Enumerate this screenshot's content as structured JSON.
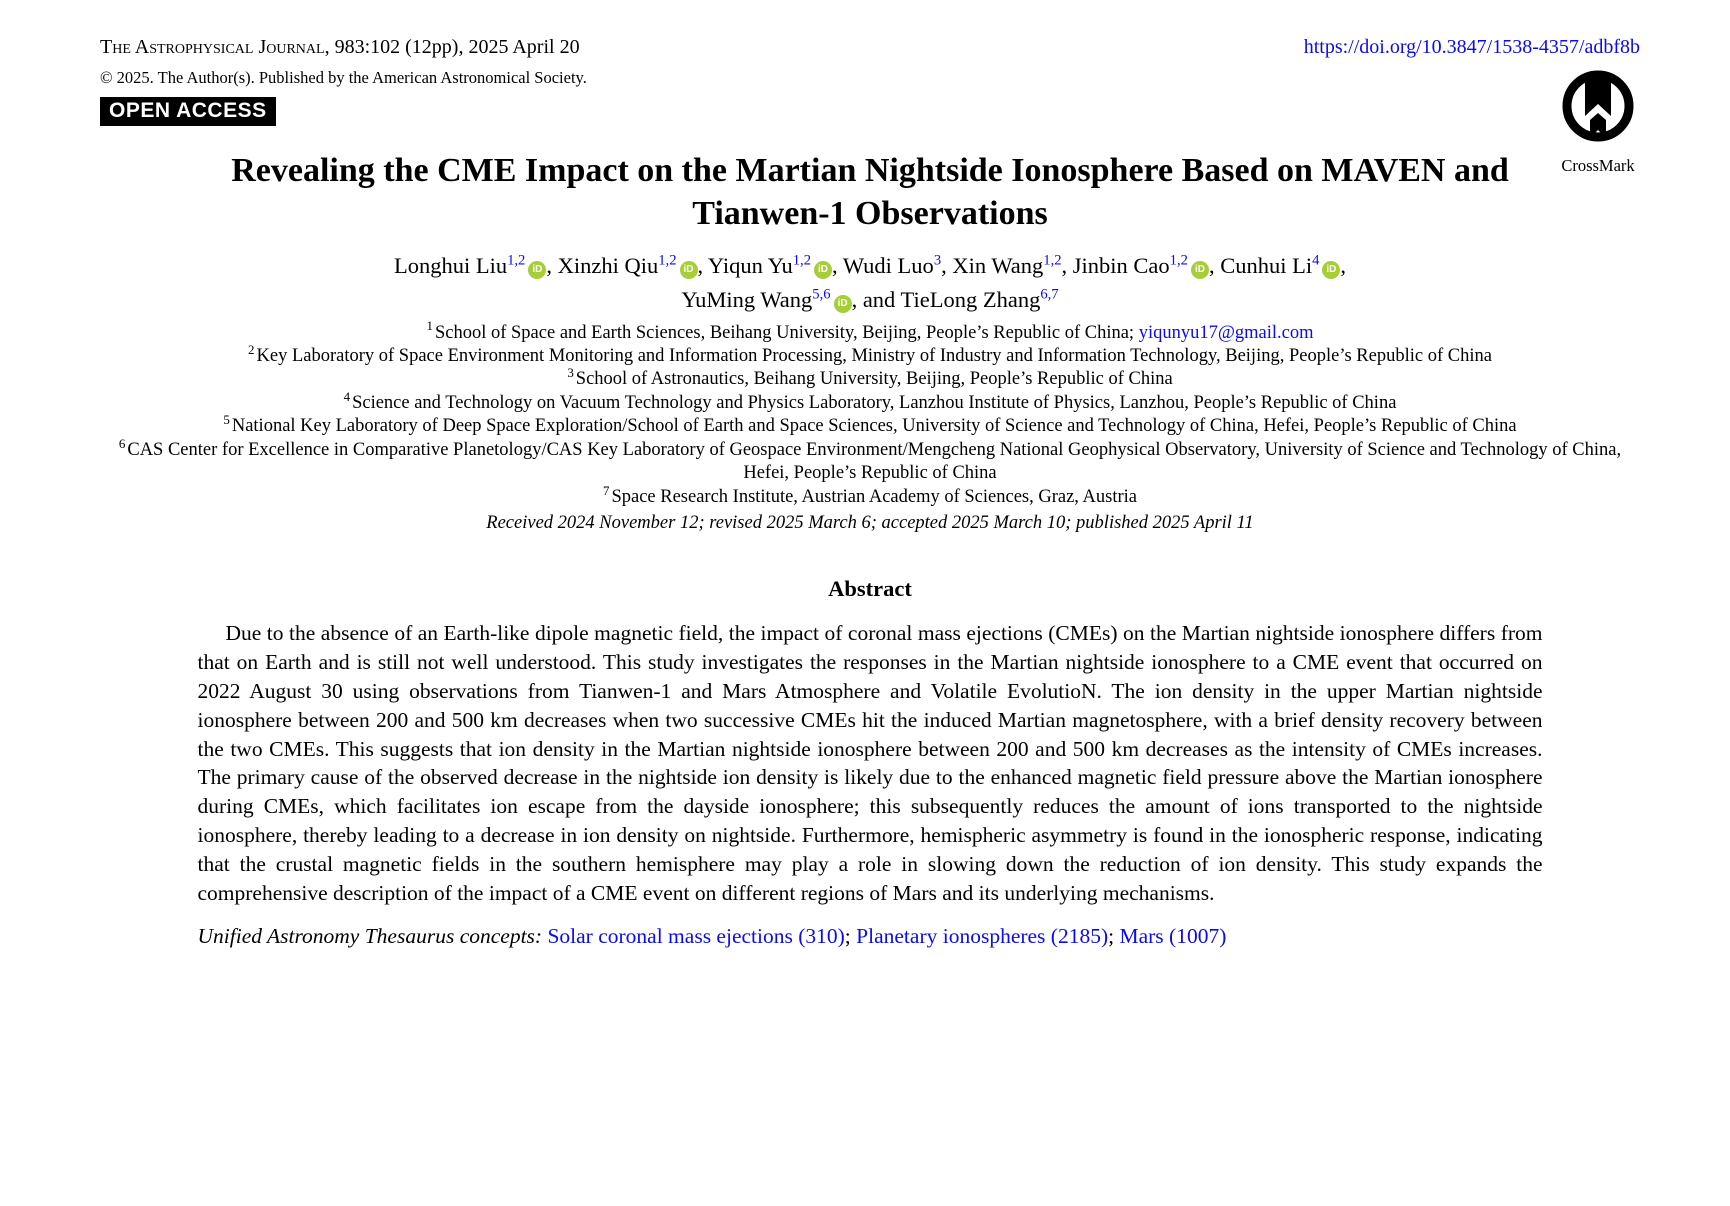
{
  "colors": {
    "link_blue": "#0b0bec",
    "orcid_green": "#A6CE39",
    "badge_bg": "#000000"
  },
  "header": {
    "journal_name": "The Astrophysical Journal",
    "journal_rest": ", 983:102 (12pp), 2025 April 20",
    "doi": "https://doi.org/10.3847/1538-4357/adbf8b",
    "copyright": "© 2025. The Author(s). Published by the American Astronomical Society.",
    "open_access_label": "OPEN ACCESS",
    "crossmark_label": "CrossMark"
  },
  "title": {
    "line1": "Revealing the CME Impact on the Martian Nightside Ionosphere Based on MAVEN and",
    "line2": "Tianwen-1 Observations"
  },
  "authors": [
    {
      "name": "Longhui Liu",
      "sup": "1,2",
      "orcid": true,
      "sep": ", ",
      "break_after": false
    },
    {
      "name": "Xinzhi Qiu",
      "sup": "1,2",
      "orcid": true,
      "sep": ", ",
      "break_after": false
    },
    {
      "name": "Yiqun Yu",
      "sup": "1,2",
      "orcid": true,
      "sep": ", ",
      "break_after": false
    },
    {
      "name": "Wudi Luo",
      "sup": "3",
      "orcid": false,
      "sep": ", ",
      "break_after": false
    },
    {
      "name": "Xin Wang",
      "sup": "1,2",
      "orcid": false,
      "sep": ", ",
      "break_after": false
    },
    {
      "name": "Jinbin Cao",
      "sup": "1,2",
      "orcid": true,
      "sep": ", ",
      "break_after": false
    },
    {
      "name": "Cunhui Li",
      "sup": "4",
      "orcid": true,
      "sep": ",",
      "break_after": true
    },
    {
      "name": "YuMing Wang",
      "sup": "5,6",
      "orcid": true,
      "sep": ", and ",
      "break_after": false
    },
    {
      "name": "TieLong Zhang",
      "sup": "6,7",
      "orcid": false,
      "sep": "",
      "break_after": false
    }
  ],
  "orcid_icon_text": "iD",
  "affiliations": [
    {
      "num": "1",
      "text": "School of Space and Earth Sciences, Beihang University, Beijing, People’s Republic of China; ",
      "email": "yiqunyu17@gmail.com"
    },
    {
      "num": "2",
      "text": "Key Laboratory of Space Environment Monitoring and Information Processing, Ministry of Industry and Information Technology, Beijing, People’s Republic of China"
    },
    {
      "num": "3",
      "text": "School of Astronautics, Beihang University, Beijing, People’s Republic of China"
    },
    {
      "num": "4",
      "text": "Science and Technology on Vacuum Technology and Physics Laboratory, Lanzhou Institute of Physics, Lanzhou, People’s Republic of China"
    },
    {
      "num": "5",
      "text": "National Key Laboratory of Deep Space Exploration/School of Earth and Space Sciences, University of Science and Technology of China, Hefei, People’s Republic of China"
    },
    {
      "num": "6",
      "text": "CAS Center for Excellence in Comparative Planetology/CAS Key Laboratory of Geospace Environment/Mengcheng National Geophysical Observatory, University of Science and Technology of China, Hefei, People’s Republic of China"
    },
    {
      "num": "7",
      "text": "Space Research Institute, Austrian Academy of Sciences, Graz, Austria"
    }
  ],
  "received": "Received 2024 November 12; revised 2025 March 6; accepted 2025 March 10; published 2025 April 11",
  "abstract": {
    "heading": "Abstract",
    "text": "Due to the absence of an Earth-like dipole magnetic field, the impact of coronal mass ejections (CMEs) on the Martian nightside ionosphere differs from that on Earth and is still not well understood. This study investigates the responses in the Martian nightside ionosphere to a CME event that occurred on 2022 August 30 using observations from Tianwen-1 and Mars Atmosphere and Volatile EvolutioN. The ion density in the upper Martian nightside ionosphere between 200 and 500 km decreases when two successive CMEs hit the induced Martian magnetosphere, with a brief density recovery between the two CMEs. This suggests that ion density in the Martian nightside ionosphere between 200 and 500 km decreases as the intensity of CMEs increases. The primary cause of the observed decrease in the nightside ion density is likely due to the enhanced magnetic field pressure above the Martian ionosphere during CMEs, which facilitates ion escape from the dayside ionosphere; this subsequently reduces the amount of ions transported to the nightside ionosphere, thereby leading to a decrease in ion density on nightside. Furthermore, hemispheric asymmetry is found in the ionospheric response, indicating that the crustal magnetic fields in the southern hemisphere may play a role in slowing down the reduction of ion density. This study expands the comprehensive description of the impact of a CME event on different regions of Mars and its underlying mechanisms."
  },
  "concepts": {
    "lead": "Unified Astronomy Thesaurus concepts:",
    "links": [
      "Solar coronal mass ejections (310)",
      "Planetary ionospheres (2185)",
      "Mars (1007)"
    ],
    "separator": "; "
  }
}
